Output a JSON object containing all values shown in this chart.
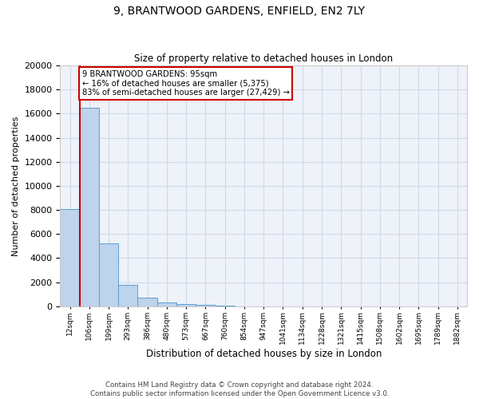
{
  "title_line1": "9, BRANTWOOD GARDENS, ENFIELD, EN2 7LY",
  "title_line2": "Size of property relative to detached houses in London",
  "xlabel": "Distribution of detached houses by size in London",
  "ylabel": "Number of detached properties",
  "categories": [
    "12sqm",
    "106sqm",
    "199sqm",
    "293sqm",
    "386sqm",
    "480sqm",
    "573sqm",
    "667sqm",
    "760sqm",
    "854sqm",
    "947sqm",
    "1041sqm",
    "1134sqm",
    "1228sqm",
    "1321sqm",
    "1415sqm",
    "1508sqm",
    "1602sqm",
    "1695sqm",
    "1789sqm",
    "1882sqm"
  ],
  "values": [
    8100,
    16500,
    5250,
    1800,
    700,
    300,
    170,
    110,
    70,
    0,
    0,
    0,
    0,
    0,
    0,
    0,
    0,
    0,
    0,
    0,
    0
  ],
  "bar_color": "#bed3ec",
  "bar_edge_color": "#5a9fd4",
  "vline_color": "#cc0000",
  "annotation_text": "9 BRANTWOOD GARDENS: 95sqm\n← 16% of detached houses are smaller (5,375)\n83% of semi-detached houses are larger (27,429) →",
  "annotation_box_color": "#ffffff",
  "annotation_box_edge_color": "#cc0000",
  "ylim": [
    0,
    20000
  ],
  "yticks": [
    0,
    2000,
    4000,
    6000,
    8000,
    10000,
    12000,
    14000,
    16000,
    18000,
    20000
  ],
  "grid_color": "#d0d8e8",
  "background_color": "#eef2f9",
  "footer_line1": "Contains HM Land Registry data © Crown copyright and database right 2024.",
  "footer_line2": "Contains public sector information licensed under the Open Government Licence v3.0."
}
